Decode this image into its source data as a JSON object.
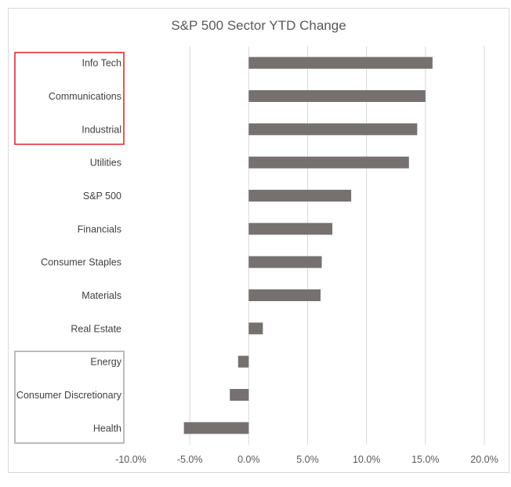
{
  "chart_data": {
    "type": "bar",
    "orientation": "horizontal",
    "title": "S&P 500 Sector YTD Change",
    "xlabel": "",
    "ylabel": "",
    "xlim": [
      -10,
      20
    ],
    "x_ticks": [
      -10,
      -5,
      0,
      5,
      10,
      15,
      20
    ],
    "x_tick_labels": [
      "-10.0%",
      "-5.0%",
      "0.0%",
      "5.0%",
      "10.0%",
      "15.0%",
      "20.0%"
    ],
    "grid": true,
    "categories": [
      "Info Tech",
      "Communications",
      "Industrial",
      "Utilities",
      "S&P 500",
      "Financials",
      "Consumer Staples",
      "Materials",
      "Real Estate",
      "Energy",
      "Consumer Discretionary",
      "Health"
    ],
    "values": [
      15.6,
      15.0,
      14.3,
      13.6,
      8.7,
      7.1,
      6.2,
      6.1,
      1.2,
      -0.9,
      -1.6,
      -5.5
    ],
    "bar_color": "#767171",
    "highlight_groups": [
      {
        "name": "top-sectors",
        "categories": [
          "Info Tech",
          "Communications",
          "Industrial"
        ],
        "color": "#e02020"
      },
      {
        "name": "bottom-sectors",
        "categories": [
          "Energy",
          "Consumer Discretionary",
          "Health"
        ],
        "color": "#a6a6a6"
      }
    ]
  }
}
